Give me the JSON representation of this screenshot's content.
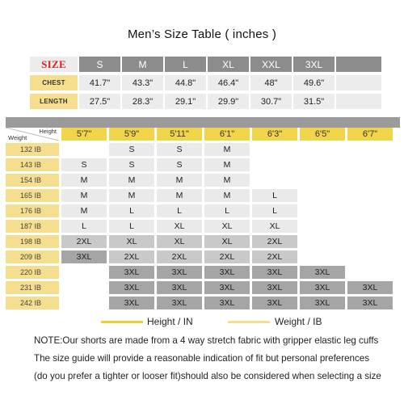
{
  "title": "Men’s Size Table ( inches )",
  "size_table": {
    "header_label": "SIZE",
    "sizes": [
      "S",
      "M",
      "L",
      "XL",
      "XXL",
      "3XL"
    ],
    "rows": [
      {
        "label": "CHEST",
        "values": [
          "41.7\"",
          "43.3\"",
          "44.8\"",
          "46.4\"",
          "48\"",
          "49.6\""
        ]
      },
      {
        "label": "LENGTH",
        "values": [
          "27.5\"",
          "28.3\"",
          "29.1\"",
          "29.9\"",
          "30.7\"",
          "31.5\""
        ]
      }
    ]
  },
  "grid": {
    "corner_height_label": "Height",
    "corner_weight_label": "Weight",
    "heights": [
      "5'7\"",
      "5'9\"",
      "5'11\"",
      "6'1\"",
      "6'3\"",
      "6'5\"",
      "6'7\""
    ],
    "rows": [
      {
        "weight": "132 IB",
        "cells": [
          "",
          "S",
          "S",
          "M",
          "",
          "",
          ""
        ],
        "shades": [
          "",
          "lg",
          "lg",
          "lg",
          "",
          "",
          ""
        ]
      },
      {
        "weight": "143 IB",
        "cells": [
          "S",
          "S",
          "S",
          "M",
          "",
          "",
          ""
        ],
        "shades": [
          "lg",
          "lg",
          "lg",
          "lg",
          "",
          "",
          ""
        ]
      },
      {
        "weight": "154 IB",
        "cells": [
          "M",
          "M",
          "M",
          "M",
          "",
          "",
          ""
        ],
        "shades": [
          "lg",
          "lg",
          "lg",
          "lg",
          "",
          "",
          ""
        ]
      },
      {
        "weight": "165 IB",
        "cells": [
          "M",
          "M",
          "M",
          "M",
          "L",
          "",
          ""
        ],
        "shades": [
          "lg",
          "lg",
          "lg",
          "lg",
          "lg",
          "",
          ""
        ]
      },
      {
        "weight": "176 IB",
        "cells": [
          "M",
          "L",
          "L",
          "L",
          "L",
          "",
          ""
        ],
        "shades": [
          "lg",
          "lg",
          "lg",
          "lg",
          "lg",
          "",
          ""
        ]
      },
      {
        "weight": "187 IB",
        "cells": [
          "L",
          "L",
          "XL",
          "XL",
          "XL",
          "",
          ""
        ],
        "shades": [
          "lg",
          "lg",
          "lg",
          "lg",
          "lg",
          "",
          ""
        ]
      },
      {
        "weight": "198 IB",
        "cells": [
          "2XL",
          "XL",
          "XL",
          "XL",
          "2XL",
          "",
          ""
        ],
        "shades": [
          "md",
          "md",
          "md",
          "md",
          "md",
          "",
          ""
        ]
      },
      {
        "weight": "209 IB",
        "cells": [
          "3XL",
          "2XL",
          "2XL",
          "2XL",
          "2XL",
          "",
          ""
        ],
        "shades": [
          "dk",
          "md",
          "md",
          "md",
          "md",
          "",
          ""
        ]
      },
      {
        "weight": "220 IB",
        "cells": [
          "",
          "3XL",
          "3XL",
          "3XL",
          "3XL",
          "3XL",
          ""
        ],
        "shades": [
          "",
          "dk",
          "dk",
          "dk",
          "dk",
          "dk",
          ""
        ]
      },
      {
        "weight": "231 IB",
        "cells": [
          "",
          "3XL",
          "3XL",
          "3XL",
          "3XL",
          "3XL",
          "3XL"
        ],
        "shades": [
          "",
          "dk",
          "dk",
          "dk",
          "dk",
          "dk",
          "dk"
        ]
      },
      {
        "weight": "242 IB",
        "cells": [
          "",
          "3XL",
          "3XL",
          "3XL",
          "3XL",
          "3XL",
          "3XL"
        ],
        "shades": [
          "",
          "dk",
          "dk",
          "dk",
          "dk",
          "dk",
          "dk"
        ]
      }
    ]
  },
  "legend": {
    "height_label": "Height / IN",
    "weight_label": "Weight / IB",
    "height_color": "#f2cf2e",
    "weight_color": "#f5df8e"
  },
  "notes": [
    "NOTE:Our shorts are made from a 4 way stretch fabric with gripper elastic leg cuffs",
    "The size guide will provide a reasonable indication of fit but personal preferences",
    "(do you prefer a tighter or looser fit)should also be considered when selecting a size"
  ],
  "colors": {
    "size_header_red": "#d42424",
    "header_gray": "#8c8c8c",
    "label_yellow": "#f5df8e",
    "height_yellow": "#f2d44a",
    "cell_light": "#eaeaea",
    "cell_medium": "#c9c9c9",
    "cell_dark": "#a5a5a5"
  }
}
